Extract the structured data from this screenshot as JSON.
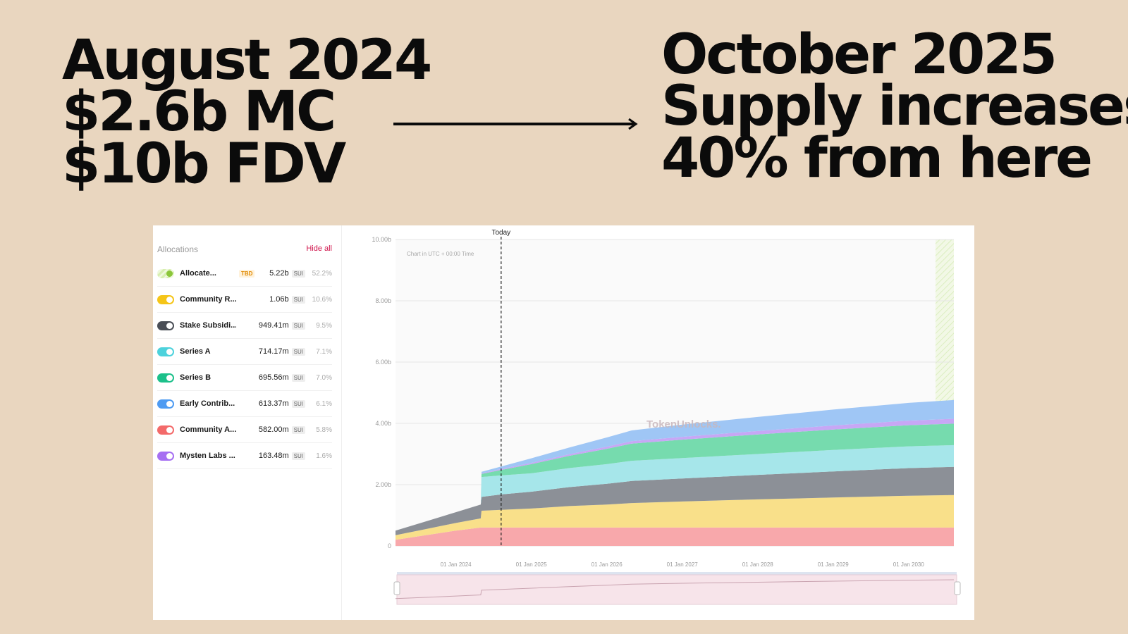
{
  "headline_left": [
    "August 2024",
    "$2.6b MC",
    "$10b FDV"
  ],
  "headline_right": [
    "October 2025",
    "Supply increases",
    "40% from here"
  ],
  "sidebar": {
    "title": "Allocations",
    "hide_all": "Hide all",
    "items": [
      {
        "label": "Allocate...",
        "badge": "TBD",
        "amount": "5.22b",
        "unit": "SUI",
        "pct": "52.2%",
        "color": "#c6e77f"
      },
      {
        "label": "Community R...",
        "badge": "",
        "amount": "1.06b",
        "unit": "SUI",
        "pct": "10.6%",
        "color": "#f5c518"
      },
      {
        "label": "Stake Subsidi...",
        "badge": "",
        "amount": "949.41m",
        "unit": "SUI",
        "pct": "9.5%",
        "color": "#4a4e56"
      },
      {
        "label": "Series A",
        "badge": "",
        "amount": "714.17m",
        "unit": "SUI",
        "pct": "7.1%",
        "color": "#4dd2dc"
      },
      {
        "label": "Series B",
        "badge": "",
        "amount": "695.56m",
        "unit": "SUI",
        "pct": "7.0%",
        "color": "#1cc08a"
      },
      {
        "label": "Early Contrib...",
        "badge": "",
        "amount": "613.37m",
        "unit": "SUI",
        "pct": "6.1%",
        "color": "#4e9bf2"
      },
      {
        "label": "Community A...",
        "badge": "",
        "amount": "582.00m",
        "unit": "SUI",
        "pct": "5.8%",
        "color": "#f36a6a"
      },
      {
        "label": "Mysten Labs ...",
        "badge": "",
        "amount": "163.48m",
        "unit": "SUI",
        "pct": "1.6%",
        "color": "#a66ff2"
      }
    ]
  },
  "chart_data": {
    "type": "area",
    "stacked": true,
    "note": "Chart in UTC + 00:00 Time",
    "watermark": "TokenUnlocks.",
    "today_label": "Today",
    "today_x": 2024.6,
    "ylim": [
      0,
      10
    ],
    "y_ticks": [
      "0",
      "2.00b",
      "4.00b",
      "6.00b",
      "8.00b",
      "10.00b"
    ],
    "x_range": [
      2023.2,
      2030.6
    ],
    "x_ticks": [
      {
        "x": 2024.0,
        "label": "01 Jan 2024"
      },
      {
        "x": 2025.0,
        "label": "01 Jan 2025"
      },
      {
        "x": 2026.0,
        "label": "01 Jan 2026"
      },
      {
        "x": 2027.0,
        "label": "01 Jan 2027"
      },
      {
        "x": 2028.0,
        "label": "01 Jan 2028"
      },
      {
        "x": 2029.0,
        "label": "01 Jan 2029"
      },
      {
        "x": 2030.0,
        "label": "01 Jan 2030"
      }
    ],
    "x": [
      2023.2,
      2023.6,
      2024.0,
      2024.33,
      2024.34,
      2024.6,
      2025.0,
      2025.5,
      2026.0,
      2026.33,
      2027.0,
      2028.0,
      2029.0,
      2030.0,
      2030.6
    ],
    "series": [
      {
        "name": "Community A...",
        "color": "#f8a8ab",
        "values": [
          0.2,
          0.35,
          0.5,
          0.6,
          0.6,
          0.6,
          0.6,
          0.6,
          0.6,
          0.6,
          0.6,
          0.6,
          0.6,
          0.6,
          0.6
        ]
      },
      {
        "name": "Community R...",
        "color": "#f9e08a",
        "values": [
          0.15,
          0.2,
          0.25,
          0.3,
          0.55,
          0.58,
          0.62,
          0.7,
          0.75,
          0.8,
          0.85,
          0.92,
          0.98,
          1.04,
          1.06
        ]
      },
      {
        "name": "Stake Subsidi...",
        "color": "#8c9097",
        "values": [
          0.15,
          0.25,
          0.35,
          0.45,
          0.45,
          0.5,
          0.55,
          0.62,
          0.68,
          0.72,
          0.75,
          0.8,
          0.85,
          0.9,
          0.92
        ]
      },
      {
        "name": "Series A",
        "color": "#a6e6ea",
        "values": [
          0,
          0,
          0,
          0,
          0.65,
          0.62,
          0.6,
          0.62,
          0.64,
          0.66,
          0.67,
          0.68,
          0.7,
          0.71,
          0.71
        ]
      },
      {
        "name": "Series B",
        "color": "#76dbae",
        "values": [
          0,
          0,
          0,
          0,
          0.1,
          0.18,
          0.3,
          0.4,
          0.5,
          0.56,
          0.6,
          0.64,
          0.67,
          0.69,
          0.7
        ]
      },
      {
        "name": "Mysten Labs ...",
        "color": "#c7a7f5",
        "values": [
          0,
          0,
          0,
          0,
          0.02,
          0.03,
          0.04,
          0.05,
          0.07,
          0.08,
          0.09,
          0.11,
          0.13,
          0.15,
          0.16
        ]
      },
      {
        "name": "Early Contrib...",
        "color": "#9fc6f5",
        "values": [
          0,
          0,
          0,
          0,
          0.05,
          0.08,
          0.15,
          0.22,
          0.3,
          0.35,
          0.4,
          0.46,
          0.52,
          0.58,
          0.61
        ]
      }
    ]
  }
}
